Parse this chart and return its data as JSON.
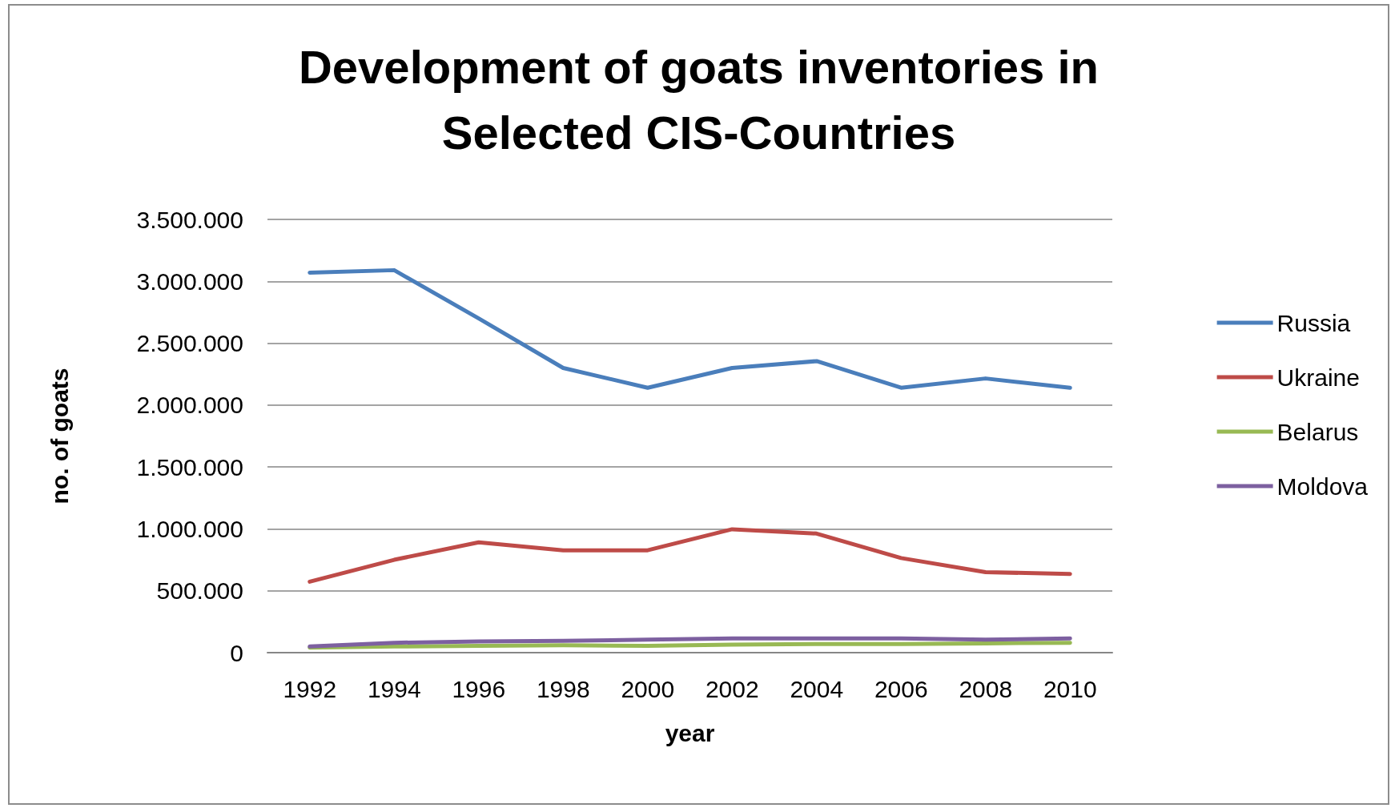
{
  "chart_data": {
    "type": "line",
    "title": "Development of goats inventories in\nSelected CIS-Countries",
    "xlabel": "year",
    "ylabel": "no. of goats",
    "categories": [
      "1992",
      "1994",
      "1996",
      "1998",
      "2000",
      "2002",
      "2004",
      "2006",
      "2008",
      "2010"
    ],
    "series": [
      {
        "name": "Russia",
        "color": "#4a7ebb",
        "values": [
          3070000,
          3090000,
          2700000,
          2300000,
          2140000,
          2300000,
          2355000,
          2140000,
          2215000,
          2140000
        ]
      },
      {
        "name": "Ukraine",
        "color": "#be4b48",
        "values": [
          573000,
          750000,
          891000,
          827000,
          827000,
          997000,
          962000,
          764000,
          650000,
          636000
        ]
      },
      {
        "name": "Belarus",
        "color": "#98b954",
        "values": [
          40000,
          50000,
          55000,
          60000,
          55000,
          65000,
          70000,
          70000,
          75000,
          80000
        ]
      },
      {
        "name": "Moldova",
        "color": "#7d60a0",
        "values": [
          50000,
          80000,
          90000,
          95000,
          105000,
          115000,
          115000,
          115000,
          105000,
          115000
        ]
      }
    ],
    "ylim": [
      0,
      3500000
    ],
    "yticks": [
      0,
      {
        "value": 500000,
        "label": "500.000"
      },
      {
        "value": 1000000,
        "label": "1.000.000"
      },
      {
        "value": 1500000,
        "label": "1.500.000"
      },
      {
        "value": 2000000,
        "label": "2.000.000"
      },
      {
        "value": 2500000,
        "label": "2.500.000"
      },
      {
        "value": 3000000,
        "label": "3.000.000"
      },
      {
        "value": 3500000,
        "label": "3.500.000"
      }
    ],
    "grid": "y",
    "legend": "right",
    "marker": "none",
    "line_style": "solid"
  }
}
